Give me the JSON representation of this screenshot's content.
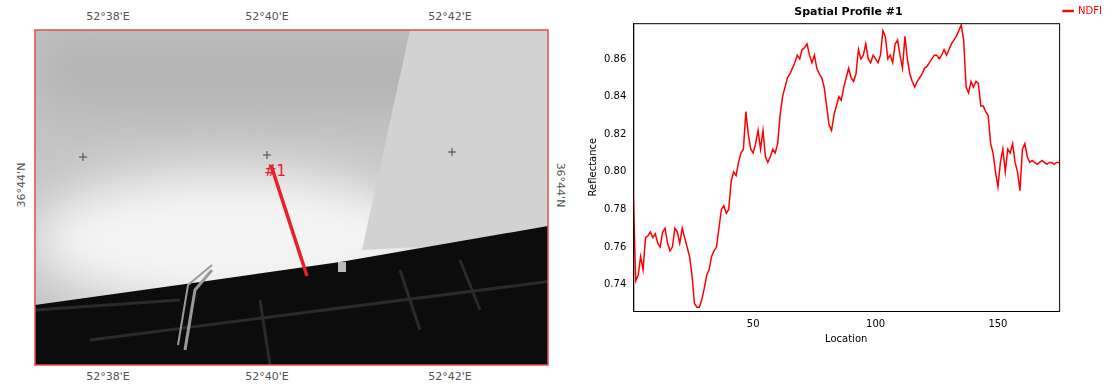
{
  "chart_data": {
    "type": "line",
    "title": "Spatial Profile #1",
    "x_label": "Location",
    "y_label": "Reflectance",
    "x": [
      1,
      2,
      3,
      4,
      5,
      6,
      7,
      8,
      9,
      10,
      11,
      12,
      13,
      14,
      15,
      16,
      17,
      18,
      19,
      20,
      21,
      22,
      23,
      24,
      25,
      26,
      27,
      28,
      29,
      30,
      31,
      32,
      33,
      34,
      35,
      36,
      37,
      38,
      39,
      40,
      41,
      42,
      43,
      44,
      45,
      46,
      47,
      48,
      49,
      50,
      51,
      52,
      53,
      54,
      55,
      56,
      57,
      58,
      59,
      60,
      61,
      62,
      63,
      64,
      65,
      66,
      67,
      68,
      69,
      70,
      71,
      72,
      73,
      74,
      75,
      76,
      77,
      78,
      79,
      80,
      81,
      82,
      83,
      84,
      85,
      86,
      87,
      88,
      89,
      90,
      91,
      92,
      93,
      94,
      95,
      96,
      97,
      98,
      99,
      100,
      101,
      102,
      103,
      104,
      105,
      106,
      107,
      108,
      109,
      110,
      111,
      112,
      113,
      114,
      115,
      116,
      117,
      118,
      119,
      120,
      121,
      122,
      123,
      124,
      125,
      126,
      127,
      128,
      129,
      130,
      131,
      132,
      133,
      134,
      135,
      136,
      137,
      138,
      139,
      140,
      141,
      142,
      143,
      144,
      145,
      146,
      147,
      148,
      149,
      150,
      151,
      152,
      153,
      154,
      155,
      156,
      157,
      158,
      159,
      160,
      161,
      162,
      163,
      164,
      165,
      166,
      167,
      168,
      169,
      170,
      171,
      172,
      173,
      174,
      175
    ],
    "series": [
      {
        "name": "NDFI",
        "color": "#ff0000",
        "values": [
          0.788,
          0.742,
          0.745,
          0.755,
          0.748,
          0.765,
          0.766,
          0.768,
          0.765,
          0.767,
          0.762,
          0.76,
          0.768,
          0.77,
          0.762,
          0.758,
          0.76,
          0.77,
          0.768,
          0.762,
          0.77,
          0.765,
          0.76,
          0.755,
          0.745,
          0.73,
          0.728,
          0.728,
          0.732,
          0.738,
          0.745,
          0.748,
          0.755,
          0.758,
          0.76,
          0.77,
          0.78,
          0.782,
          0.778,
          0.78,
          0.795,
          0.8,
          0.798,
          0.805,
          0.81,
          0.812,
          0.832,
          0.82,
          0.812,
          0.81,
          0.815,
          0.822,
          0.812,
          0.822,
          0.808,
          0.805,
          0.808,
          0.812,
          0.81,
          0.815,
          0.83,
          0.84,
          0.845,
          0.85,
          0.852,
          0.855,
          0.858,
          0.862,
          0.86,
          0.865,
          0.866,
          0.868,
          0.862,
          0.858,
          0.862,
          0.855,
          0.852,
          0.85,
          0.845,
          0.835,
          0.825,
          0.822,
          0.83,
          0.835,
          0.84,
          0.838,
          0.845,
          0.85,
          0.855,
          0.85,
          0.848,
          0.852,
          0.865,
          0.86,
          0.862,
          0.868,
          0.86,
          0.858,
          0.862,
          0.86,
          0.858,
          0.862,
          0.875,
          0.872,
          0.86,
          0.862,
          0.858,
          0.868,
          0.87,
          0.862,
          0.855,
          0.872,
          0.86,
          0.852,
          0.848,
          0.845,
          0.848,
          0.85,
          0.852,
          0.855,
          0.856,
          0.858,
          0.86,
          0.862,
          0.862,
          0.86,
          0.862,
          0.865,
          0.862,
          0.865,
          0.868,
          0.87,
          0.872,
          0.875,
          0.878,
          0.87,
          0.845,
          0.842,
          0.848,
          0.845,
          0.848,
          0.847,
          0.835,
          0.835,
          0.832,
          0.83,
          0.815,
          0.81,
          0.8,
          0.792,
          0.805,
          0.812,
          0.8,
          0.812,
          0.81,
          0.815,
          0.805,
          0.8,
          0.79,
          0.812,
          0.815,
          0.808,
          0.805,
          0.806,
          0.805,
          0.804,
          0.805,
          0.806,
          0.805,
          0.804,
          0.805,
          0.805,
          0.804,
          0.805,
          0.805
        ]
      }
    ],
    "xlim": [
      1,
      175
    ],
    "xticks": [
      50,
      100,
      150
    ],
    "ylim": [
      0.726,
      0.879
    ],
    "yticks": [
      0.74,
      0.76,
      0.78,
      {
        "value": 0.8,
        "label": "0.80"
      },
      0.82,
      0.84,
      0.86
    ],
    "grid": false,
    "legend": "top right"
  },
  "map": {
    "top_labels": [
      "52°38'E",
      "52°40'E",
      "52°42'E"
    ],
    "bottom_labels": [
      "52°38'E",
      "52°40'E",
      "52°42'E"
    ],
    "left_label": "36°44'N",
    "right_label": "36°44'N",
    "profile_label": "#1"
  }
}
